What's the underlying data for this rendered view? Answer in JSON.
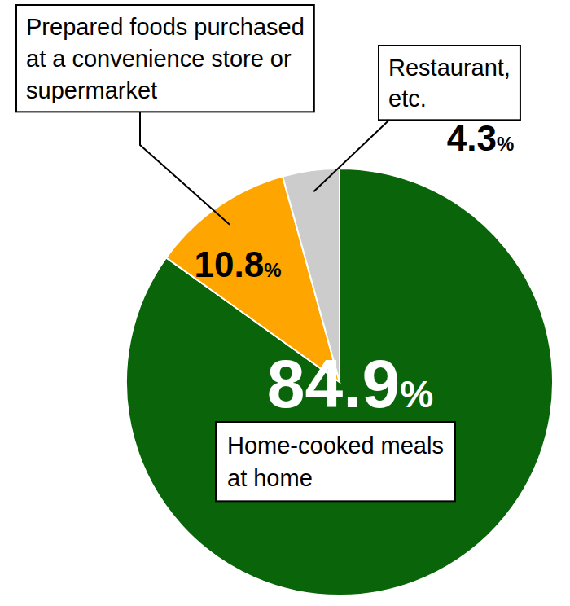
{
  "chart_data": {
    "type": "pie",
    "categories": [
      "Home-cooked meals\nat home",
      "Prepared foods purchased\nat a convenience store or\nsupermarket",
      "Restaurant,\netc."
    ],
    "values": [
      84.9,
      10.8,
      4.3
    ],
    "value_labels": [
      "84.9%",
      "10.8%",
      "4.3%"
    ],
    "colors": [
      "#0a650a",
      "#ffa500",
      "#cccccc"
    ],
    "data_labels": true
  }
}
